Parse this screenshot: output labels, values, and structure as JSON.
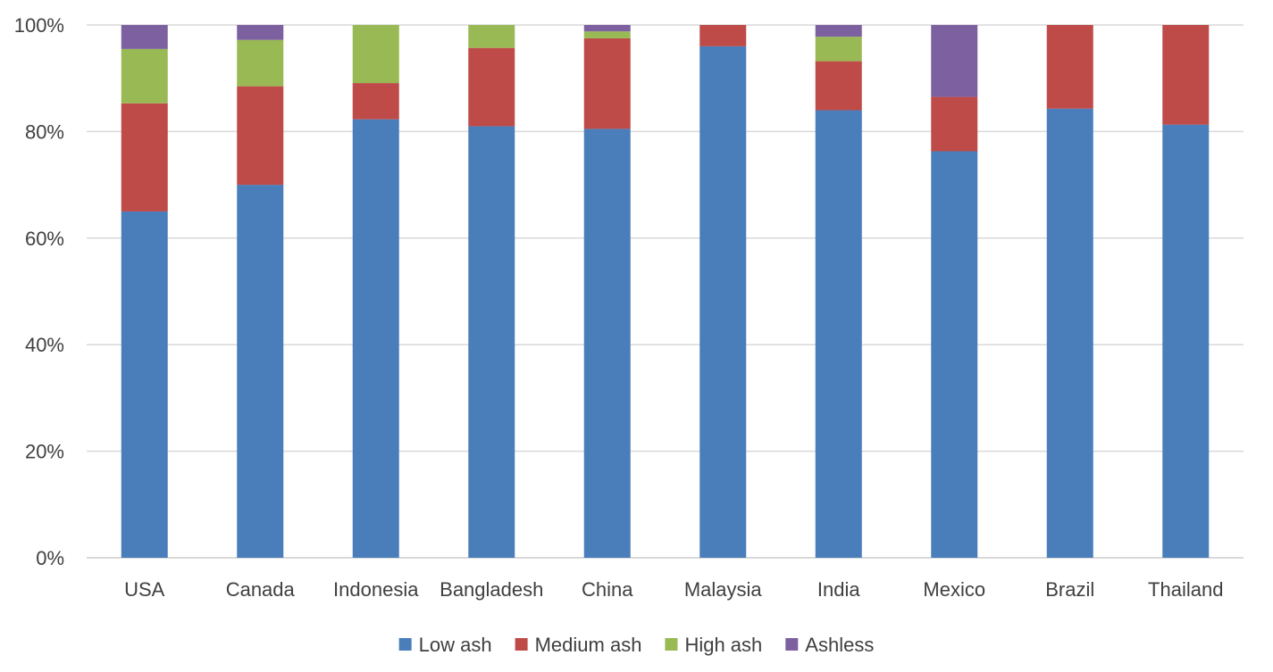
{
  "chart_data": {
    "type": "bar",
    "stacked": true,
    "percent_stacked": true,
    "categories": [
      "USA",
      "Canada",
      "Indonesia",
      "Bangladesh",
      "China",
      "Malaysia",
      "India",
      "Mexico",
      "Brazil",
      "Thailand"
    ],
    "series": [
      {
        "name": "Low ash",
        "color": "#4a7ebb",
        "values": [
          65,
          70,
          82.3,
          81,
          80.5,
          96,
          84,
          76.3,
          84.3,
          81.3
        ]
      },
      {
        "name": "Medium ash",
        "color": "#be4b48",
        "values": [
          20.3,
          18.5,
          6.8,
          14.7,
          17,
          4,
          9.2,
          10.2,
          15.7,
          18.7
        ]
      },
      {
        "name": "High ash",
        "color": "#98b954",
        "values": [
          10.2,
          8.7,
          10.9,
          4.3,
          1.3,
          0,
          4.6,
          0,
          0,
          0
        ]
      },
      {
        "name": "Ashless",
        "color": "#7d60a0",
        "values": [
          4.5,
          2.8,
          0,
          0,
          1.2,
          0,
          2.2,
          13.5,
          0,
          0
        ]
      }
    ],
    "ylim": [
      0,
      100
    ],
    "y_ticks": [
      "0%",
      "20%",
      "40%",
      "60%",
      "80%",
      "100%"
    ],
    "y_tick_values": [
      0,
      20,
      40,
      60,
      80,
      100
    ],
    "grid": true,
    "legend_position": "bottom-center",
    "title": "",
    "xlabel": "",
    "ylabel": ""
  }
}
